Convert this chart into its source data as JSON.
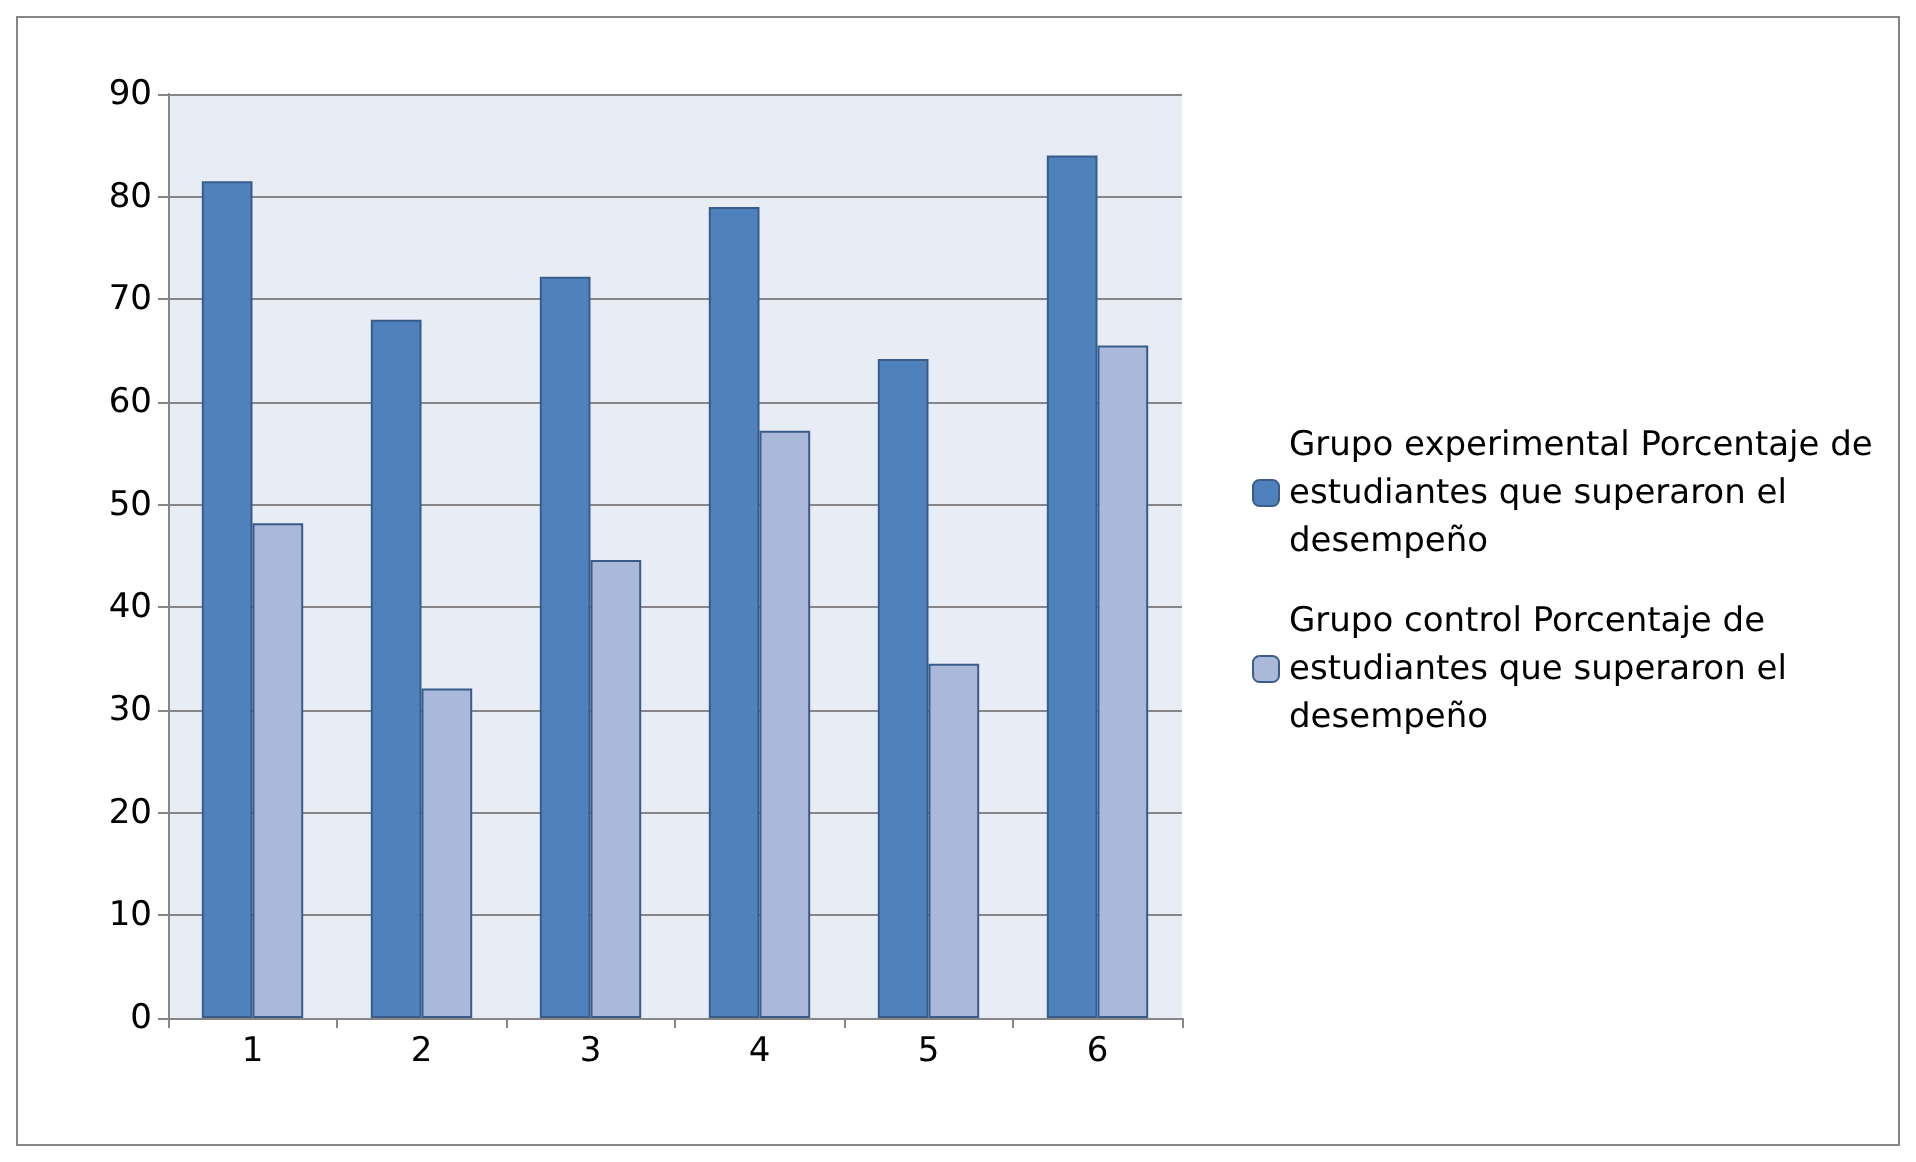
{
  "chart_data": {
    "type": "bar",
    "categories": [
      "1",
      "2",
      "3",
      "4",
      "5",
      "6"
    ],
    "series": [
      {
        "name": "Grupo experimental Porcentaje de estudiantes que superaron el desempeño",
        "color": "#4f81bd",
        "values": [
          81.5,
          68,
          72.2,
          79,
          64.2,
          84
        ]
      },
      {
        "name": "Grupo control Porcentaje de estudiantes que superaron el desempeño",
        "color": "#aab9d9",
        "values": [
          48.2,
          32.1,
          44.6,
          57.2,
          34.5,
          65.5
        ]
      }
    ],
    "ylim": [
      0,
      90
    ],
    "yticks": [
      0,
      10,
      20,
      30,
      40,
      50,
      60,
      70,
      80,
      90
    ],
    "grid": "y",
    "legend": "right"
  }
}
